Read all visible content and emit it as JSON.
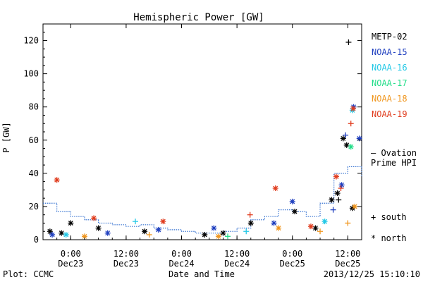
{
  "chart_data": {
    "type": "scatter",
    "title": "Hemispheric Power [GW]",
    "xlabel": "Date and Time",
    "ylabel": "P [GW]",
    "xlim": [
      "2013-12-22 18:00",
      "2013-12-25 15:00"
    ],
    "ylim": [
      0,
      130
    ],
    "y_ticks": [
      0,
      20,
      40,
      60,
      80,
      100,
      120
    ],
    "x_ticks": [
      {
        "time": "2013-12-23 00:00",
        "label_time": "0:00",
        "label_date": "Dec23"
      },
      {
        "time": "2013-12-23 12:00",
        "label_time": "12:00",
        "label_date": "Dec23"
      },
      {
        "time": "2013-12-24 00:00",
        "label_time": "0:00",
        "label_date": "Dec24"
      },
      {
        "time": "2013-12-24 12:00",
        "label_time": "12:00",
        "label_date": "Dec24"
      },
      {
        "time": "2013-12-25 00:00",
        "label_time": "0:00",
        "label_date": "Dec25"
      },
      {
        "time": "2013-12-25 12:00",
        "label_time": "12:00",
        "label_date": "Dec25"
      }
    ],
    "legend": [
      {
        "name": "METP-02",
        "color": "#000000"
      },
      {
        "name": "NOAA-15",
        "color": "#1f3fbf"
      },
      {
        "name": "NOAA-16",
        "color": "#22c8e6"
      },
      {
        "name": "NOAA-17",
        "color": "#22dd88"
      },
      {
        "name": "NOAA-18",
        "color": "#f0961e"
      },
      {
        "name": "NOAA-19",
        "color": "#e03c1e"
      }
    ],
    "symbol_legend": [
      {
        "symbol": "+",
        "label": "south"
      },
      {
        "symbol": "*",
        "label": "north"
      }
    ],
    "ovation_label_1": "— Ovation",
    "ovation_label_2": "Prime HPI",
    "ovation_color": "#3370d0",
    "ovation_series": [
      {
        "t": "2013-12-22 18:00",
        "v": 22
      },
      {
        "t": "2013-12-22 21:00",
        "v": 17
      },
      {
        "t": "2013-12-23 00:00",
        "v": 14
      },
      {
        "t": "2013-12-23 03:00",
        "v": 12
      },
      {
        "t": "2013-12-23 06:00",
        "v": 10
      },
      {
        "t": "2013-12-23 09:00",
        "v": 9
      },
      {
        "t": "2013-12-23 12:00",
        "v": 8
      },
      {
        "t": "2013-12-23 15:00",
        "v": 9
      },
      {
        "t": "2013-12-23 18:00",
        "v": 7
      },
      {
        "t": "2013-12-23 21:00",
        "v": 6
      },
      {
        "t": "2013-12-24 00:00",
        "v": 5
      },
      {
        "t": "2013-12-24 03:00",
        "v": 4
      },
      {
        "t": "2013-12-24 06:00",
        "v": 4
      },
      {
        "t": "2013-12-24 09:00",
        "v": 5
      },
      {
        "t": "2013-12-24 12:00",
        "v": 7
      },
      {
        "t": "2013-12-24 15:00",
        "v": 12
      },
      {
        "t": "2013-12-24 18:00",
        "v": 14
      },
      {
        "t": "2013-12-24 21:00",
        "v": 18
      },
      {
        "t": "2013-12-25 00:00",
        "v": 17
      },
      {
        "t": "2013-12-25 03:00",
        "v": 14
      },
      {
        "t": "2013-12-25 06:00",
        "v": 22
      },
      {
        "t": "2013-12-25 09:00",
        "v": 40
      },
      {
        "t": "2013-12-25 12:00",
        "v": 44
      },
      {
        "t": "2013-12-25 15:00",
        "v": 38
      }
    ],
    "points": [
      {
        "sat": "METP-02",
        "hemi": "south",
        "t": "2013-12-25 12:10",
        "v": 119
      },
      {
        "sat": "METP-02",
        "hemi": "north",
        "t": "2013-12-25 11:00",
        "v": 61
      },
      {
        "sat": "METP-02",
        "hemi": "north",
        "t": "2013-12-25 11:45",
        "v": 57
      },
      {
        "sat": "METP-02",
        "hemi": "north",
        "t": "2013-12-25 13:00",
        "v": 19
      },
      {
        "sat": "METP-02",
        "hemi": "north",
        "t": "2013-12-25 08:30",
        "v": 24
      },
      {
        "sat": "METP-02",
        "hemi": "north",
        "t": "2013-12-25 09:45",
        "v": 28
      },
      {
        "sat": "METP-02",
        "hemi": "south",
        "t": "2013-12-25 10:00",
        "v": 24
      },
      {
        "sat": "METP-02",
        "hemi": "north",
        "t": "2013-12-25 00:30",
        "v": 17
      },
      {
        "sat": "METP-02",
        "hemi": "north",
        "t": "2013-12-24 15:00",
        "v": 10
      },
      {
        "sat": "METP-02",
        "hemi": "north",
        "t": "2013-12-24 05:00",
        "v": 3
      },
      {
        "sat": "METP-02",
        "hemi": "north",
        "t": "2013-12-23 00:00",
        "v": 10
      },
      {
        "sat": "METP-02",
        "hemi": "north",
        "t": "2013-12-22 22:00",
        "v": 4
      },
      {
        "sat": "METP-02",
        "hemi": "north",
        "t": "2013-12-22 19:30",
        "v": 5
      },
      {
        "sat": "METP-02",
        "hemi": "north",
        "t": "2013-12-23 06:00",
        "v": 7
      },
      {
        "sat": "METP-02",
        "hemi": "north",
        "t": "2013-12-23 16:00",
        "v": 5
      },
      {
        "sat": "METP-02",
        "hemi": "north",
        "t": "2013-12-24 09:00",
        "v": 4
      },
      {
        "sat": "METP-02",
        "hemi": "north",
        "t": "2013-12-25 05:00",
        "v": 7
      },
      {
        "sat": "NOAA-15",
        "hemi": "north",
        "t": "2013-12-25 13:15",
        "v": 80
      },
      {
        "sat": "NOAA-15",
        "hemi": "north",
        "t": "2013-12-25 14:30",
        "v": 61
      },
      {
        "sat": "NOAA-15",
        "hemi": "south",
        "t": "2013-12-25 11:30",
        "v": 63
      },
      {
        "sat": "NOAA-15",
        "hemi": "north",
        "t": "2013-12-25 10:40",
        "v": 33
      },
      {
        "sat": "NOAA-15",
        "hemi": "north",
        "t": "2013-12-25 00:00",
        "v": 23
      },
      {
        "sat": "NOAA-15",
        "hemi": "south",
        "t": "2013-12-25 08:50",
        "v": 18
      },
      {
        "sat": "NOAA-15",
        "hemi": "north",
        "t": "2013-12-24 20:00",
        "v": 10
      },
      {
        "sat": "NOAA-15",
        "hemi": "north",
        "t": "2013-12-23 08:00",
        "v": 4
      },
      {
        "sat": "NOAA-15",
        "hemi": "north",
        "t": "2013-12-23 19:00",
        "v": 6
      },
      {
        "sat": "NOAA-15",
        "hemi": "north",
        "t": "2013-12-22 20:00",
        "v": 3
      },
      {
        "sat": "NOAA-15",
        "hemi": "north",
        "t": "2013-12-24 07:00",
        "v": 7
      },
      {
        "sat": "NOAA-16",
        "hemi": "south",
        "t": "2013-12-23 14:00",
        "v": 11
      },
      {
        "sat": "NOAA-16",
        "hemi": "north",
        "t": "2013-12-25 13:00",
        "v": 78
      },
      {
        "sat": "NOAA-16",
        "hemi": "north",
        "t": "2013-12-25 07:00",
        "v": 11
      },
      {
        "sat": "NOAA-16",
        "hemi": "south",
        "t": "2013-12-24 14:00",
        "v": 5
      },
      {
        "sat": "NOAA-16",
        "hemi": "north",
        "t": "2013-12-22 23:00",
        "v": 3
      },
      {
        "sat": "NOAA-17",
        "hemi": "north",
        "t": "2013-12-25 12:40",
        "v": 56
      },
      {
        "sat": "NOAA-17",
        "hemi": "south",
        "t": "2013-12-24 10:00",
        "v": 2
      },
      {
        "sat": "NOAA-18",
        "hemi": "south",
        "t": "2013-12-25 12:00",
        "v": 10
      },
      {
        "sat": "NOAA-18",
        "hemi": "north",
        "t": "2013-12-25 13:30",
        "v": 20
      },
      {
        "sat": "NOAA-18",
        "hemi": "south",
        "t": "2013-12-25 06:00",
        "v": 5
      },
      {
        "sat": "NOAA-18",
        "hemi": "north",
        "t": "2013-12-24 21:00",
        "v": 7
      },
      {
        "sat": "NOAA-18",
        "hemi": "north",
        "t": "2013-12-24 08:00",
        "v": 2
      },
      {
        "sat": "NOAA-18",
        "hemi": "south",
        "t": "2013-12-23 17:00",
        "v": 3
      },
      {
        "sat": "NOAA-18",
        "hemi": "north",
        "t": "2013-12-23 03:00",
        "v": 2
      },
      {
        "sat": "NOAA-19",
        "hemi": "north",
        "t": "2013-12-22 21:00",
        "v": 36
      },
      {
        "sat": "NOAA-19",
        "hemi": "north",
        "t": "2013-12-23 05:00",
        "v": 13
      },
      {
        "sat": "NOAA-19",
        "hemi": "north",
        "t": "2013-12-23 20:00",
        "v": 11
      },
      {
        "sat": "NOAA-19",
        "hemi": "north",
        "t": "2013-12-24 20:20",
        "v": 31
      },
      {
        "sat": "NOAA-19",
        "hemi": "south",
        "t": "2013-12-24 14:50",
        "v": 15
      },
      {
        "sat": "NOAA-19",
        "hemi": "south",
        "t": "2013-12-25 12:40",
        "v": 70
      },
      {
        "sat": "NOAA-19",
        "hemi": "north",
        "t": "2013-12-25 13:10",
        "v": 79
      },
      {
        "sat": "NOAA-19",
        "hemi": "north",
        "t": "2013-12-25 09:30",
        "v": 38
      },
      {
        "sat": "NOAA-19",
        "hemi": "south",
        "t": "2013-12-25 10:30",
        "v": 31
      },
      {
        "sat": "NOAA-19",
        "hemi": "north",
        "t": "2013-12-25 04:00",
        "v": 8
      }
    ]
  },
  "footer": {
    "plot_credit": "Plot: CCMC",
    "timestamp": "2013/12/25 15:10:10"
  }
}
